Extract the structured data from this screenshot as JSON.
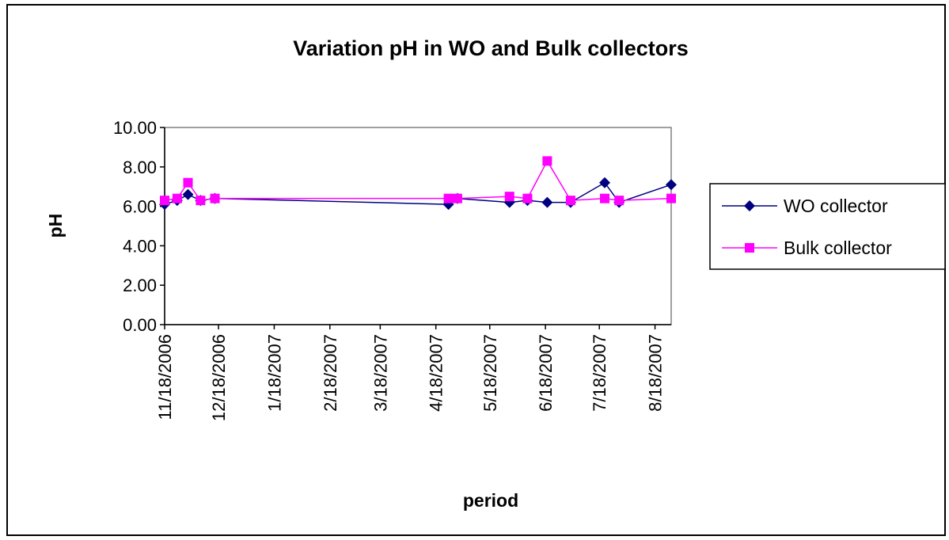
{
  "chart_data": {
    "type": "line",
    "title": "Variation pH in WO and Bulk collectors",
    "xlabel": "period",
    "ylabel": "pH",
    "x": [
      "11/18/2006",
      "11/25/2006",
      "12/1/2006",
      "12/8/2006",
      "12/16/2006",
      "4/25/2007",
      "4/30/2007",
      "5/29/2007",
      "6/8/2007",
      "6/19/2007",
      "7/2/2007",
      "7/21/2007",
      "7/29/2007",
      "8/27/2007"
    ],
    "series": [
      {
        "name": "WO collector",
        "color": "#000080",
        "marker": "diamond",
        "values": [
          6.1,
          6.3,
          6.6,
          6.3,
          6.4,
          6.1,
          6.4,
          6.2,
          6.3,
          6.2,
          6.2,
          7.2,
          6.2,
          7.1
        ]
      },
      {
        "name": "Bulk collector",
        "color": "#ff00ff",
        "marker": "square",
        "values": [
          6.3,
          6.4,
          7.2,
          6.3,
          6.4,
          6.4,
          6.4,
          6.5,
          6.4,
          8.3,
          6.3,
          6.4,
          6.3,
          6.4
        ]
      }
    ],
    "xlim": [
      "11/18/2006",
      "8/27/2007"
    ],
    "xticks": [
      "11/18/2006",
      "12/18/2006",
      "1/18/2007",
      "2/18/2007",
      "3/18/2007",
      "4/18/2007",
      "5/18/2007",
      "6/18/2007",
      "7/18/2007",
      "8/18/2007"
    ],
    "ylim": [
      0,
      10
    ],
    "yticks": [
      {
        "value": 0,
        "label": "0.00"
      },
      {
        "value": 2,
        "label": "2.00"
      },
      {
        "value": 4,
        "label": "4.00"
      },
      {
        "value": 6,
        "label": "6.00"
      },
      {
        "value": 8,
        "label": "8.00"
      },
      {
        "value": 10,
        "label": "10.00"
      }
    ],
    "grid": false,
    "legend": "right"
  }
}
